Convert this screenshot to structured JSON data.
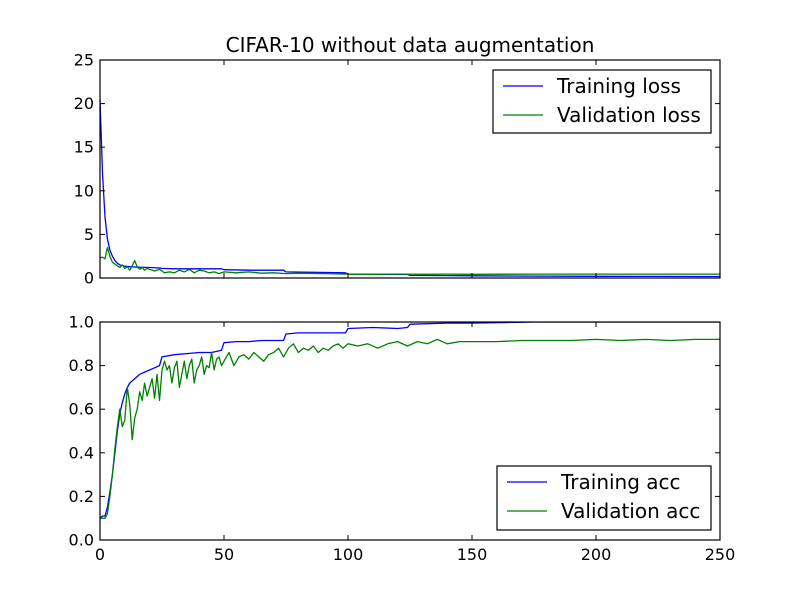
{
  "chart_data": [
    {
      "type": "line",
      "title": "CIFAR-10 without data augmentation",
      "xlabel": "",
      "ylabel": "",
      "xlim": [
        0,
        250
      ],
      "ylim": [
        0,
        25
      ],
      "x_ticks": [
        0,
        50,
        100,
        150,
        200,
        250
      ],
      "x_tick_labels_shown": false,
      "y_ticks": [
        0,
        5,
        10,
        15,
        20,
        25
      ],
      "y_tick_labels": [
        "0",
        "5",
        "10",
        "15",
        "20",
        "25"
      ],
      "legend_position": "top-right",
      "colors": {
        "training": "#0000ff",
        "validation": "#008000"
      },
      "series": [
        {
          "name": "Training loss",
          "color": "#0000ff",
          "x": [
            0,
            1,
            2,
            3,
            4,
            5,
            6,
            7,
            8,
            10,
            12,
            15,
            20,
            24,
            25,
            30,
            40,
            49,
            50,
            60,
            70,
            74,
            75,
            85,
            99,
            100,
            110,
            124,
            125,
            140,
            150,
            175,
            200,
            225,
            250
          ],
          "values": [
            20.5,
            12.0,
            7.0,
            4.5,
            3.2,
            2.5,
            2.0,
            1.7,
            1.5,
            1.35,
            1.3,
            1.25,
            1.2,
            1.15,
            1.1,
            1.05,
            1.05,
            1.05,
            0.95,
            0.9,
            0.9,
            0.9,
            0.7,
            0.65,
            0.6,
            0.45,
            0.42,
            0.4,
            0.3,
            0.28,
            0.25,
            0.22,
            0.2,
            0.18,
            0.17
          ]
        },
        {
          "name": "Validation loss",
          "color": "#008000",
          "x": [
            0,
            1,
            2,
            3,
            4,
            5,
            6,
            7,
            8,
            9,
            10,
            11,
            12,
            13,
            14,
            15,
            16,
            17,
            18,
            19,
            20,
            22,
            24,
            26,
            28,
            30,
            32,
            34,
            36,
            38,
            40,
            42,
            44,
            46,
            48,
            50,
            55,
            60,
            65,
            70,
            75,
            80,
            90,
            100,
            110,
            120,
            130,
            140,
            150,
            175,
            200,
            225,
            250
          ],
          "values": [
            2.3,
            2.4,
            2.2,
            3.5,
            2.5,
            1.8,
            1.6,
            1.4,
            1.2,
            1.5,
            1.1,
            1.3,
            0.9,
            1.4,
            2.0,
            1.3,
            1.0,
            1.2,
            0.9,
            1.1,
            1.0,
            0.8,
            1.0,
            0.6,
            0.7,
            0.6,
            0.9,
            0.7,
            1.0,
            0.6,
            0.9,
            0.8,
            0.6,
            0.7,
            0.5,
            0.7,
            0.6,
            0.7,
            0.55,
            0.6,
            0.5,
            0.55,
            0.5,
            0.45,
            0.42,
            0.45,
            0.42,
            0.45,
            0.43,
            0.45,
            0.45,
            0.45,
            0.45
          ]
        }
      ]
    },
    {
      "type": "line",
      "title": "",
      "xlabel": "",
      "ylabel": "",
      "xlim": [
        0,
        250
      ],
      "ylim": [
        0.0,
        1.0
      ],
      "x_ticks": [
        0,
        50,
        100,
        150,
        200,
        250
      ],
      "x_tick_labels": [
        "0",
        "50",
        "100",
        "150",
        "200",
        "250"
      ],
      "y_ticks": [
        0.0,
        0.2,
        0.4,
        0.6,
        0.8,
        1.0
      ],
      "y_tick_labels": [
        "0.0",
        "0.2",
        "0.4",
        "0.6",
        "0.8",
        "1.0"
      ],
      "legend_position": "bottom-right",
      "series": [
        {
          "name": "Training acc",
          "color": "#0000ff",
          "x": [
            0,
            1,
            2,
            3,
            4,
            5,
            6,
            7,
            8,
            9,
            10,
            11,
            12,
            14,
            16,
            18,
            20,
            22,
            24,
            25,
            30,
            35,
            40,
            45,
            49,
            50,
            55,
            60,
            65,
            70,
            74,
            75,
            80,
            90,
            99,
            100,
            110,
            120,
            124,
            125,
            140,
            150,
            175,
            200,
            225,
            250
          ],
          "values": [
            0.1,
            0.11,
            0.11,
            0.15,
            0.22,
            0.3,
            0.4,
            0.5,
            0.58,
            0.63,
            0.67,
            0.7,
            0.72,
            0.74,
            0.76,
            0.77,
            0.78,
            0.79,
            0.8,
            0.84,
            0.85,
            0.855,
            0.86,
            0.86,
            0.87,
            0.905,
            0.91,
            0.91,
            0.915,
            0.915,
            0.915,
            0.945,
            0.95,
            0.95,
            0.95,
            0.97,
            0.975,
            0.97,
            0.975,
            0.99,
            0.995,
            0.995,
            1.0,
            1.0,
            1.0,
            1.0
          ]
        },
        {
          "name": "Validation acc",
          "color": "#008000",
          "x": [
            0,
            1,
            2,
            3,
            4,
            5,
            6,
            7,
            8,
            9,
            10,
            11,
            12,
            13,
            14,
            15,
            16,
            17,
            18,
            19,
            20,
            21,
            22,
            23,
            24,
            25,
            26,
            27,
            28,
            29,
            30,
            31,
            32,
            33,
            34,
            35,
            36,
            37,
            38,
            39,
            40,
            41,
            42,
            43,
            44,
            45,
            46,
            47,
            48,
            49,
            50,
            52,
            54,
            56,
            58,
            60,
            62,
            64,
            66,
            68,
            70,
            72,
            74,
            76,
            78,
            80,
            82,
            84,
            86,
            88,
            90,
            92,
            94,
            96,
            98,
            100,
            104,
            108,
            112,
            116,
            120,
            124,
            128,
            132,
            136,
            140,
            145,
            150,
            160,
            170,
            180,
            190,
            200,
            210,
            220,
            230,
            240,
            250
          ],
          "values": [
            0.1,
            0.1,
            0.1,
            0.12,
            0.2,
            0.3,
            0.42,
            0.52,
            0.6,
            0.52,
            0.55,
            0.7,
            0.62,
            0.46,
            0.56,
            0.6,
            0.68,
            0.64,
            0.72,
            0.66,
            0.7,
            0.74,
            0.65,
            0.76,
            0.64,
            0.78,
            0.82,
            0.78,
            0.8,
            0.72,
            0.79,
            0.82,
            0.7,
            0.76,
            0.82,
            0.74,
            0.8,
            0.83,
            0.72,
            0.78,
            0.8,
            0.84,
            0.76,
            0.8,
            0.79,
            0.86,
            0.78,
            0.83,
            0.84,
            0.8,
            0.82,
            0.86,
            0.8,
            0.84,
            0.85,
            0.83,
            0.86,
            0.84,
            0.82,
            0.85,
            0.86,
            0.88,
            0.84,
            0.88,
            0.9,
            0.86,
            0.88,
            0.87,
            0.89,
            0.86,
            0.88,
            0.87,
            0.89,
            0.9,
            0.88,
            0.9,
            0.89,
            0.9,
            0.88,
            0.9,
            0.91,
            0.89,
            0.91,
            0.9,
            0.92,
            0.9,
            0.91,
            0.91,
            0.91,
            0.915,
            0.915,
            0.915,
            0.92,
            0.915,
            0.92,
            0.915,
            0.92,
            0.92
          ]
        }
      ]
    }
  ]
}
